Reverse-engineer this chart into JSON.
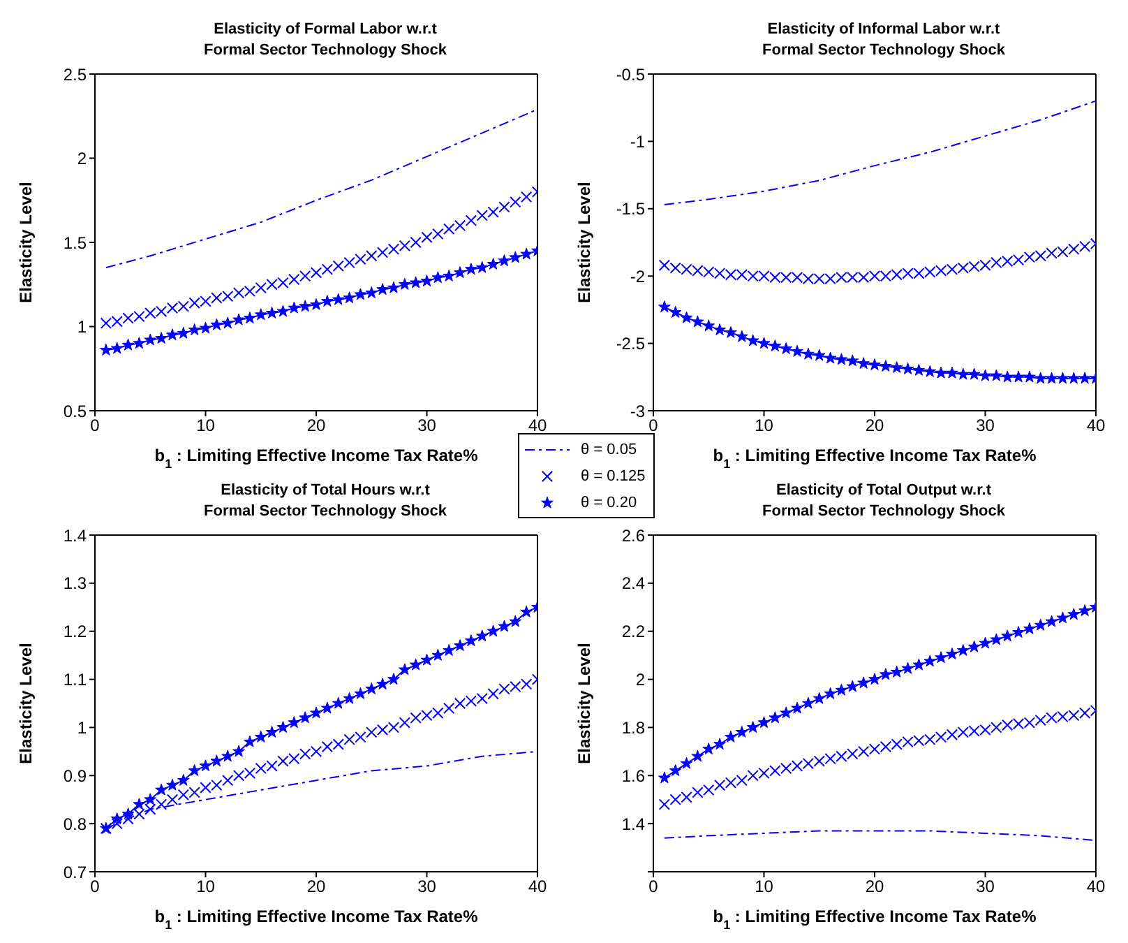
{
  "chart_data": [
    {
      "type": "line",
      "title": "Elasticity of Formal Labor w.r.t\nFormal Sector Technology Shock",
      "xlabel": "b$_{1}$ : Limiting Effective Income Tax Rate%",
      "ylabel": "Elasticity Level",
      "xlim": [
        0,
        40
      ],
      "xticks": [
        0,
        10,
        20,
        30,
        40
      ],
      "ylim": [
        0.5,
        2.5
      ],
      "yticks": [
        0.5,
        1,
        1.5,
        2,
        2.5
      ],
      "grid": false,
      "legend": "bottom right",
      "x": [
        1,
        2,
        3,
        4,
        5,
        6,
        7,
        8,
        9,
        10,
        11,
        12,
        13,
        14,
        15,
        16,
        17,
        18,
        19,
        20,
        21,
        22,
        23,
        24,
        25,
        26,
        27,
        28,
        29,
        30,
        31,
        32,
        33,
        34,
        35,
        36,
        37,
        38,
        39,
        40
      ],
      "series": [
        {
          "name": "θ = 0.05",
          "color": "#0000ff",
          "marker": "none",
          "line_style": "dashed",
          "x": [
            1,
            5,
            10,
            15,
            20,
            25,
            30,
            35,
            40
          ],
          "values": [
            1.35,
            1.42,
            1.52,
            1.62,
            1.75,
            1.87,
            2.01,
            2.15,
            2.29
          ]
        },
        {
          "name": "θ = 0.125",
          "type": "scatter",
          "color": "#0000ff",
          "marker": "cross",
          "values": [
            1.02,
            1.03,
            1.05,
            1.06,
            1.08,
            1.09,
            1.11,
            1.12,
            1.14,
            1.15,
            1.17,
            1.18,
            1.2,
            1.21,
            1.23,
            1.25,
            1.26,
            1.28,
            1.3,
            1.32,
            1.34,
            1.36,
            1.38,
            1.4,
            1.42,
            1.44,
            1.46,
            1.48,
            1.5,
            1.53,
            1.55,
            1.58,
            1.6,
            1.63,
            1.66,
            1.68,
            1.71,
            1.74,
            1.77,
            1.8
          ]
        },
        {
          "name": "θ = 0.20",
          "color": "#0000ff",
          "marker": "star",
          "line_style": "solid",
          "values": [
            0.86,
            0.87,
            0.89,
            0.9,
            0.92,
            0.93,
            0.95,
            0.96,
            0.98,
            0.99,
            1.01,
            1.02,
            1.04,
            1.05,
            1.07,
            1.08,
            1.09,
            1.11,
            1.12,
            1.13,
            1.15,
            1.16,
            1.17,
            1.19,
            1.2,
            1.22,
            1.23,
            1.25,
            1.26,
            1.27,
            1.29,
            1.3,
            1.32,
            1.34,
            1.35,
            1.37,
            1.39,
            1.41,
            1.43,
            1.45
          ]
        }
      ]
    },
    {
      "type": "line",
      "title": "Elasticity of Informal Labor w.r.t\nFormal Sector Technology Shock",
      "xlabel": "b$_{1}$ : Limiting Effective Income Tax Rate%",
      "ylabel": "Elasticity Level",
      "xlim": [
        0,
        40
      ],
      "xticks": [
        0,
        10,
        20,
        30,
        40
      ],
      "ylim": [
        -3,
        -0.5
      ],
      "yticks": [
        -3,
        -2.5,
        -2,
        -1.5,
        -1,
        -0.5
      ],
      "grid": false,
      "x": [
        1,
        2,
        3,
        4,
        5,
        6,
        7,
        8,
        9,
        10,
        11,
        12,
        13,
        14,
        15,
        16,
        17,
        18,
        19,
        20,
        21,
        22,
        23,
        24,
        25,
        26,
        27,
        28,
        29,
        30,
        31,
        32,
        33,
        34,
        35,
        36,
        37,
        38,
        39,
        40
      ],
      "series": [
        {
          "color": "#0000ff",
          "marker": "none",
          "line_style": "dashed",
          "x": [
            1,
            5,
            10,
            15,
            20,
            25,
            30,
            35,
            40
          ],
          "values": [
            -1.47,
            -1.43,
            -1.37,
            -1.29,
            -1.18,
            -1.08,
            -0.96,
            -0.84,
            -0.7
          ]
        },
        {
          "type": "scatter",
          "color": "#0000ff",
          "marker": "cross",
          "values": [
            -1.92,
            -1.94,
            -1.95,
            -1.96,
            -1.97,
            -1.98,
            -1.99,
            -1.99,
            -2,
            -2,
            -2.01,
            -2.01,
            -2.01,
            -2.02,
            -2.02,
            -2.02,
            -2.01,
            -2.01,
            -2.01,
            -2,
            -2,
            -1.99,
            -1.98,
            -1.98,
            -1.97,
            -1.96,
            -1.95,
            -1.94,
            -1.93,
            -1.92,
            -1.9,
            -1.89,
            -1.88,
            -1.86,
            -1.85,
            -1.83,
            -1.82,
            -1.8,
            -1.78,
            -1.76
          ]
        },
        {
          "color": "#0000ff",
          "marker": "star",
          "line_style": "solid",
          "values": [
            -2.23,
            -2.27,
            -2.31,
            -2.34,
            -2.37,
            -2.4,
            -2.42,
            -2.45,
            -2.48,
            -2.5,
            -2.52,
            -2.54,
            -2.56,
            -2.58,
            -2.59,
            -2.61,
            -2.62,
            -2.63,
            -2.65,
            -2.66,
            -2.67,
            -2.68,
            -2.69,
            -2.7,
            -2.71,
            -2.72,
            -2.72,
            -2.73,
            -2.73,
            -2.74,
            -2.74,
            -2.75,
            -2.75,
            -2.75,
            -2.76,
            -2.76,
            -2.76,
            -2.76,
            -2.76,
            -2.76
          ]
        }
      ]
    },
    {
      "type": "line",
      "title": "Elasticity of Total Hours w.r.t\nFormal Sector Technology Shock",
      "xlabel": "b$_{1}$ : Limiting Effective Income Tax Rate%",
      "ylabel": "Elasticity Level",
      "xlim": [
        0,
        40
      ],
      "xticks": [
        0,
        10,
        20,
        30,
        40
      ],
      "ylim": [
        0.7,
        1.4
      ],
      "yticks": [
        0.7,
        0.8,
        0.9,
        1,
        1.1,
        1.2,
        1.3,
        1.4
      ],
      "grid": false,
      "x": [
        1,
        2,
        3,
        4,
        5,
        6,
        7,
        8,
        9,
        10,
        11,
        12,
        13,
        14,
        15,
        16,
        17,
        18,
        19,
        20,
        21,
        22,
        23,
        24,
        25,
        26,
        27,
        28,
        29,
        30,
        31,
        32,
        33,
        34,
        35,
        36,
        37,
        38,
        39,
        40
      ],
      "series": [
        {
          "color": "#0000ff",
          "marker": "none",
          "line_style": "dashed",
          "x": [
            1,
            5,
            10,
            15,
            20,
            25,
            30,
            35,
            40
          ],
          "values": [
            0.79,
            0.83,
            0.85,
            0.87,
            0.89,
            0.91,
            0.92,
            0.94,
            0.95
          ]
        },
        {
          "type": "scatter",
          "color": "#0000ff",
          "marker": "cross",
          "values": [
            0.79,
            0.8,
            0.81,
            0.82,
            0.83,
            0.84,
            0.85,
            0.86,
            0.865,
            0.875,
            0.88,
            0.89,
            0.9,
            0.905,
            0.915,
            0.92,
            0.93,
            0.935,
            0.945,
            0.95,
            0.96,
            0.965,
            0.975,
            0.98,
            0.99,
            0.995,
            1,
            1.01,
            1.02,
            1.025,
            1.03,
            1.04,
            1.05,
            1.055,
            1.06,
            1.07,
            1.08,
            1.085,
            1.09,
            1.1
          ]
        },
        {
          "color": "#0000ff",
          "marker": "star",
          "line_style": "solid",
          "values": [
            0.79,
            0.81,
            0.82,
            0.84,
            0.85,
            0.87,
            0.88,
            0.89,
            0.91,
            0.92,
            0.93,
            0.94,
            0.95,
            0.97,
            0.98,
            0.99,
            1,
            1.01,
            1.02,
            1.03,
            1.04,
            1.05,
            1.06,
            1.07,
            1.08,
            1.09,
            1.1,
            1.12,
            1.13,
            1.14,
            1.15,
            1.16,
            1.17,
            1.18,
            1.19,
            1.2,
            1.21,
            1.22,
            1.24,
            1.25
          ]
        }
      ]
    },
    {
      "type": "line",
      "title": "Elasticity of Total Output w.r.t\nFormal Sector Technology Shock",
      "xlabel": "b$_{1}$ : Limiting Effective Income Tax Rate%",
      "ylabel": "Elasticity Level",
      "xlim": [
        0,
        40
      ],
      "xticks": [
        0,
        10,
        20,
        30,
        40
      ],
      "ylim": [
        1.2,
        2.6
      ],
      "yticks": [
        {
          "value": 1.2,
          "label": null
        },
        1.4,
        1.6,
        1.8,
        2,
        2.2,
        2.4,
        2.6
      ],
      "grid": false,
      "x": [
        1,
        2,
        3,
        4,
        5,
        6,
        7,
        8,
        9,
        10,
        11,
        12,
        13,
        14,
        15,
        16,
        17,
        18,
        19,
        20,
        21,
        22,
        23,
        24,
        25,
        26,
        27,
        28,
        29,
        30,
        31,
        32,
        33,
        34,
        35,
        36,
        37,
        38,
        39,
        40
      ],
      "series": [
        {
          "color": "#0000ff",
          "marker": "none",
          "line_style": "dashed",
          "x": [
            1,
            5,
            10,
            15,
            20,
            25,
            30,
            35,
            40
          ],
          "values": [
            1.34,
            1.35,
            1.36,
            1.37,
            1.37,
            1.37,
            1.36,
            1.35,
            1.33
          ]
        },
        {
          "type": "scatter",
          "color": "#0000ff",
          "marker": "cross",
          "values": [
            1.48,
            1.5,
            1.51,
            1.53,
            1.54,
            1.56,
            1.57,
            1.58,
            1.6,
            1.61,
            1.62,
            1.63,
            1.64,
            1.65,
            1.66,
            1.67,
            1.68,
            1.69,
            1.7,
            1.71,
            1.72,
            1.73,
            1.74,
            1.745,
            1.75,
            1.76,
            1.77,
            1.78,
            1.785,
            1.79,
            1.8,
            1.81,
            1.815,
            1.82,
            1.83,
            1.84,
            1.845,
            1.85,
            1.86,
            1.87
          ]
        },
        {
          "color": "#0000ff",
          "marker": "star",
          "line_style": "solid",
          "values": [
            1.59,
            1.62,
            1.65,
            1.68,
            1.71,
            1.73,
            1.76,
            1.78,
            1.8,
            1.82,
            1.84,
            1.86,
            1.88,
            1.9,
            1.92,
            1.94,
            1.955,
            1.97,
            1.985,
            2,
            2.02,
            2.03,
            2.045,
            2.06,
            2.075,
            2.09,
            2.105,
            2.12,
            2.135,
            2.15,
            2.165,
            2.18,
            2.195,
            2.21,
            2.225,
            2.24,
            2.255,
            2.27,
            2.285,
            2.3
          ]
        }
      ]
    }
  ]
}
